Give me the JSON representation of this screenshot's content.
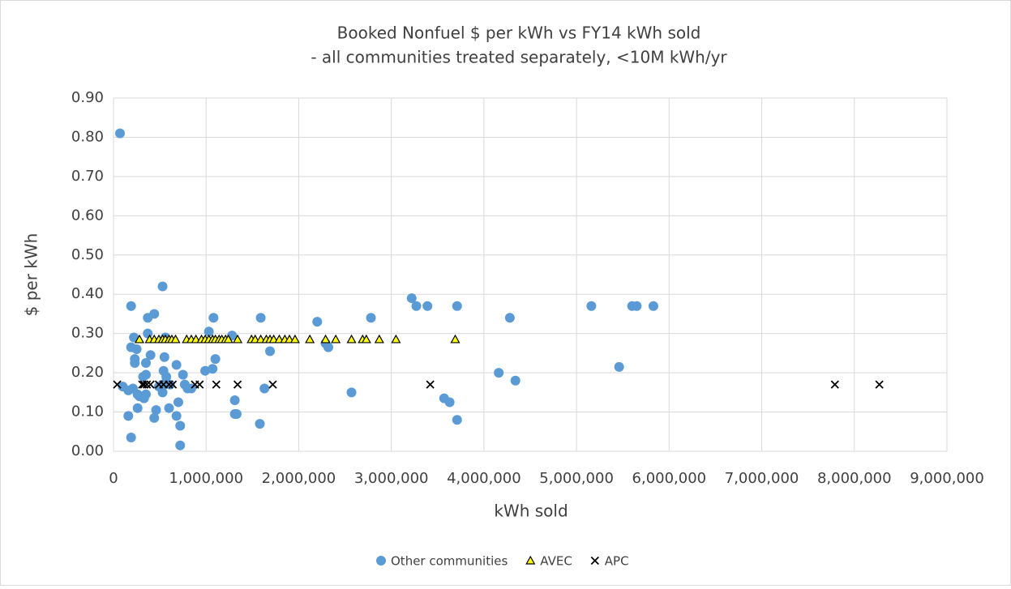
{
  "chart_data": {
    "type": "scatter",
    "title": "Booked Nonfuel $ per kWh vs FY14 kWh sold",
    "subtitle": "- all communities treated separately, <10M kWh/yr",
    "x_label": "kWh sold",
    "y_label": "$ per kWh",
    "xlim": [
      0,
      9000000
    ],
    "xticks": [
      0,
      {
        "value": 1000000,
        "label": "1,000,000"
      },
      {
        "value": 2000000,
        "label": "2,000,000"
      },
      {
        "value": 3000000,
        "label": "3,000,000"
      },
      {
        "value": 4000000,
        "label": "4,000,000"
      },
      {
        "value": 5000000,
        "label": "5,000,000"
      },
      {
        "value": 6000000,
        "label": "6,000,000"
      },
      {
        "value": 7000000,
        "label": "7,000,000"
      },
      {
        "value": 8000000,
        "label": "8,000,000"
      },
      {
        "value": 9000000,
        "label": "9,000,000"
      }
    ],
    "ylim": [
      0,
      0.9
    ],
    "yticks": [
      {
        "value": 0,
        "label": "0.00"
      },
      {
        "value": 0.1,
        "label": "0.10"
      },
      {
        "value": 0.2,
        "label": "0.20"
      },
      {
        "value": 0.3,
        "label": "0.30"
      },
      {
        "value": 0.4,
        "label": "0.40"
      },
      {
        "value": 0.5,
        "label": "0.50"
      },
      {
        "value": 0.6,
        "label": "0.60"
      },
      {
        "value": 0.7,
        "label": "0.70"
      },
      {
        "value": 0.8,
        "label": "0.80"
      },
      {
        "value": 0.9,
        "label": "0.90"
      }
    ],
    "grid": true,
    "legend": "bottom",
    "series": [
      {
        "name": "Other communities",
        "color": "#5b9bd5",
        "marker": "circle",
        "x": [
          3220000,
          3270000,
          3390000,
          3710000,
          4280000,
          3570000,
          3630000,
          3710000,
          4160000,
          4340000,
          5160000,
          5460000,
          5600000,
          5650000,
          5830000,
          2780000,
          2570000,
          2200000,
          2320000,
          2290000,
          1690000,
          1630000,
          1590000,
          1580000,
          1310000,
          1310000,
          1330000,
          1280000,
          1080000,
          1100000,
          1070000,
          1030000,
          990000,
          840000,
          800000,
          770000,
          750000,
          720000,
          720000,
          700000,
          680000,
          680000,
          610000,
          600000,
          570000,
          530000,
          540000,
          550000,
          560000,
          530000,
          530000,
          490000,
          440000,
          460000,
          440000,
          400000,
          370000,
          350000,
          370000,
          350000,
          330000,
          350000,
          320000,
          280000,
          260000,
          250000,
          230000,
          230000,
          220000,
          210000,
          190000,
          190000,
          190000,
          160000,
          160000,
          100000,
          70000,
          260000
        ],
        "values": [
          0.39,
          0.37,
          0.37,
          0.37,
          0.34,
          0.135,
          0.125,
          0.08,
          0.2,
          0.18,
          0.37,
          0.215,
          0.37,
          0.37,
          0.37,
          0.34,
          0.15,
          0.33,
          0.265,
          0.275,
          0.255,
          0.16,
          0.34,
          0.07,
          0.13,
          0.095,
          0.095,
          0.295,
          0.34,
          0.235,
          0.21,
          0.305,
          0.205,
          0.16,
          0.16,
          0.17,
          0.195,
          0.015,
          0.065,
          0.125,
          0.09,
          0.22,
          0.17,
          0.11,
          0.19,
          0.17,
          0.205,
          0.24,
          0.29,
          0.42,
          0.15,
          0.165,
          0.35,
          0.105,
          0.085,
          0.245,
          0.3,
          0.195,
          0.34,
          0.225,
          0.135,
          0.145,
          0.19,
          0.14,
          0.11,
          0.26,
          0.225,
          0.235,
          0.29,
          0.16,
          0.265,
          0.37,
          0.035,
          0.155,
          0.09,
          0.165,
          0.81,
          0.145
        ]
      },
      {
        "name": "AVEC",
        "color": "#ffff00",
        "marker": "triangle",
        "x": [
          280000,
          390000,
          440000,
          490000,
          530000,
          560000,
          600000,
          630000,
          670000,
          790000,
          840000,
          890000,
          950000,
          990000,
          1030000,
          1070000,
          1100000,
          1140000,
          1170000,
          1210000,
          1240000,
          1340000,
          1490000,
          1530000,
          1590000,
          1650000,
          1690000,
          1730000,
          1790000,
          1850000,
          1900000,
          1960000,
          2120000,
          2290000,
          2400000,
          2570000,
          2690000,
          2730000,
          2870000,
          3050000,
          3690000
        ],
        "values": [
          0.285,
          0.285,
          0.285,
          0.285,
          0.285,
          0.285,
          0.285,
          0.285,
          0.285,
          0.285,
          0.285,
          0.285,
          0.285,
          0.285,
          0.285,
          0.285,
          0.285,
          0.285,
          0.285,
          0.285,
          0.285,
          0.285,
          0.285,
          0.285,
          0.285,
          0.285,
          0.285,
          0.285,
          0.285,
          0.285,
          0.285,
          0.285,
          0.285,
          0.285,
          0.285,
          0.285,
          0.285,
          0.285,
          0.285,
          0.285,
          0.285
        ]
      },
      {
        "name": "APC",
        "color": "#000000",
        "marker": "x",
        "x": [
          40000,
          310000,
          330000,
          360000,
          400000,
          490000,
          540000,
          600000,
          640000,
          880000,
          930000,
          1110000,
          1340000,
          1720000,
          3420000,
          7790000,
          8270000
        ],
        "values": [
          0.17,
          0.17,
          0.17,
          0.17,
          0.17,
          0.17,
          0.17,
          0.17,
          0.17,
          0.17,
          0.17,
          0.17,
          0.17,
          0.17,
          0.17,
          0.17,
          0.17
        ]
      }
    ]
  }
}
